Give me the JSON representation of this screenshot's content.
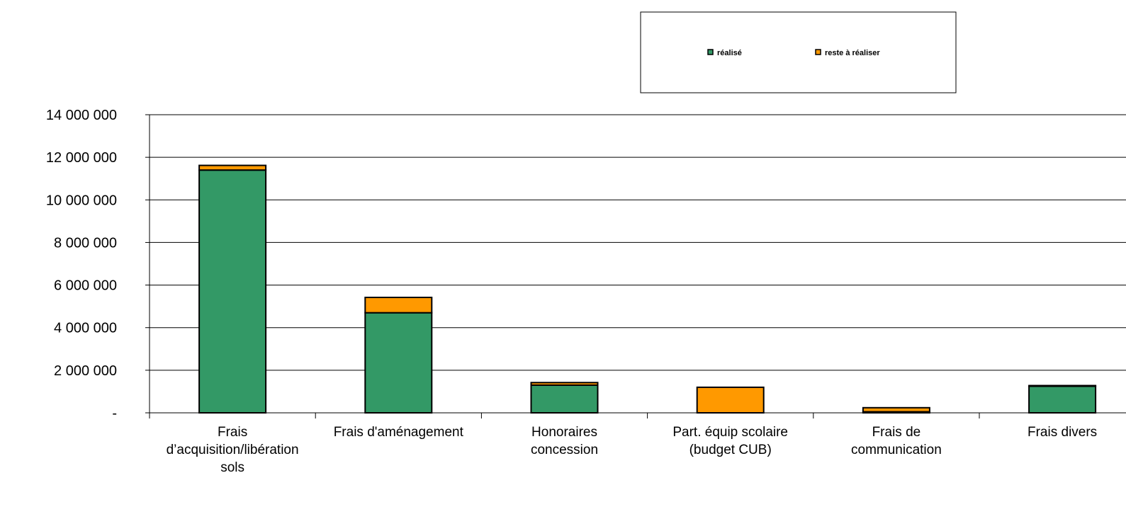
{
  "chart_data": {
    "type": "bar",
    "stacked": true,
    "categories": [
      [
        "Frais",
        "d’acquisition/libération",
        "sols"
      ],
      [
        "Frais d'aménagement"
      ],
      [
        "Honoraires",
        "concession"
      ],
      [
        "Part. équip scolaire",
        "(budget CUB)"
      ],
      [
        "Frais de",
        "communication"
      ],
      [
        "Frais divers"
      ]
    ],
    "series": [
      {
        "name": "réalisé",
        "color": "#339966",
        "values": [
          11400000,
          4700000,
          1300000,
          0,
          50000,
          1250000
        ]
      },
      {
        "name": "reste à réaliser",
        "color": "#FF9900",
        "values": [
          220000,
          720000,
          120000,
          1200000,
          190000,
          30000
        ]
      }
    ],
    "ylim": [
      0,
      14000000
    ],
    "yticks": [
      {
        "value": 0,
        "label": "-"
      },
      {
        "value": 2000000,
        "label": "2 000 000"
      },
      {
        "value": 4000000,
        "label": "4 000 000"
      },
      {
        "value": 6000000,
        "label": "6 000 000"
      },
      {
        "value": 8000000,
        "label": "8 000 000"
      },
      {
        "value": 10000000,
        "label": "10 000 000"
      },
      {
        "value": 12000000,
        "label": "12 000 000"
      },
      {
        "value": 14000000,
        "label": "14 000 000"
      }
    ],
    "grid": true,
    "legend": "top-right"
  }
}
